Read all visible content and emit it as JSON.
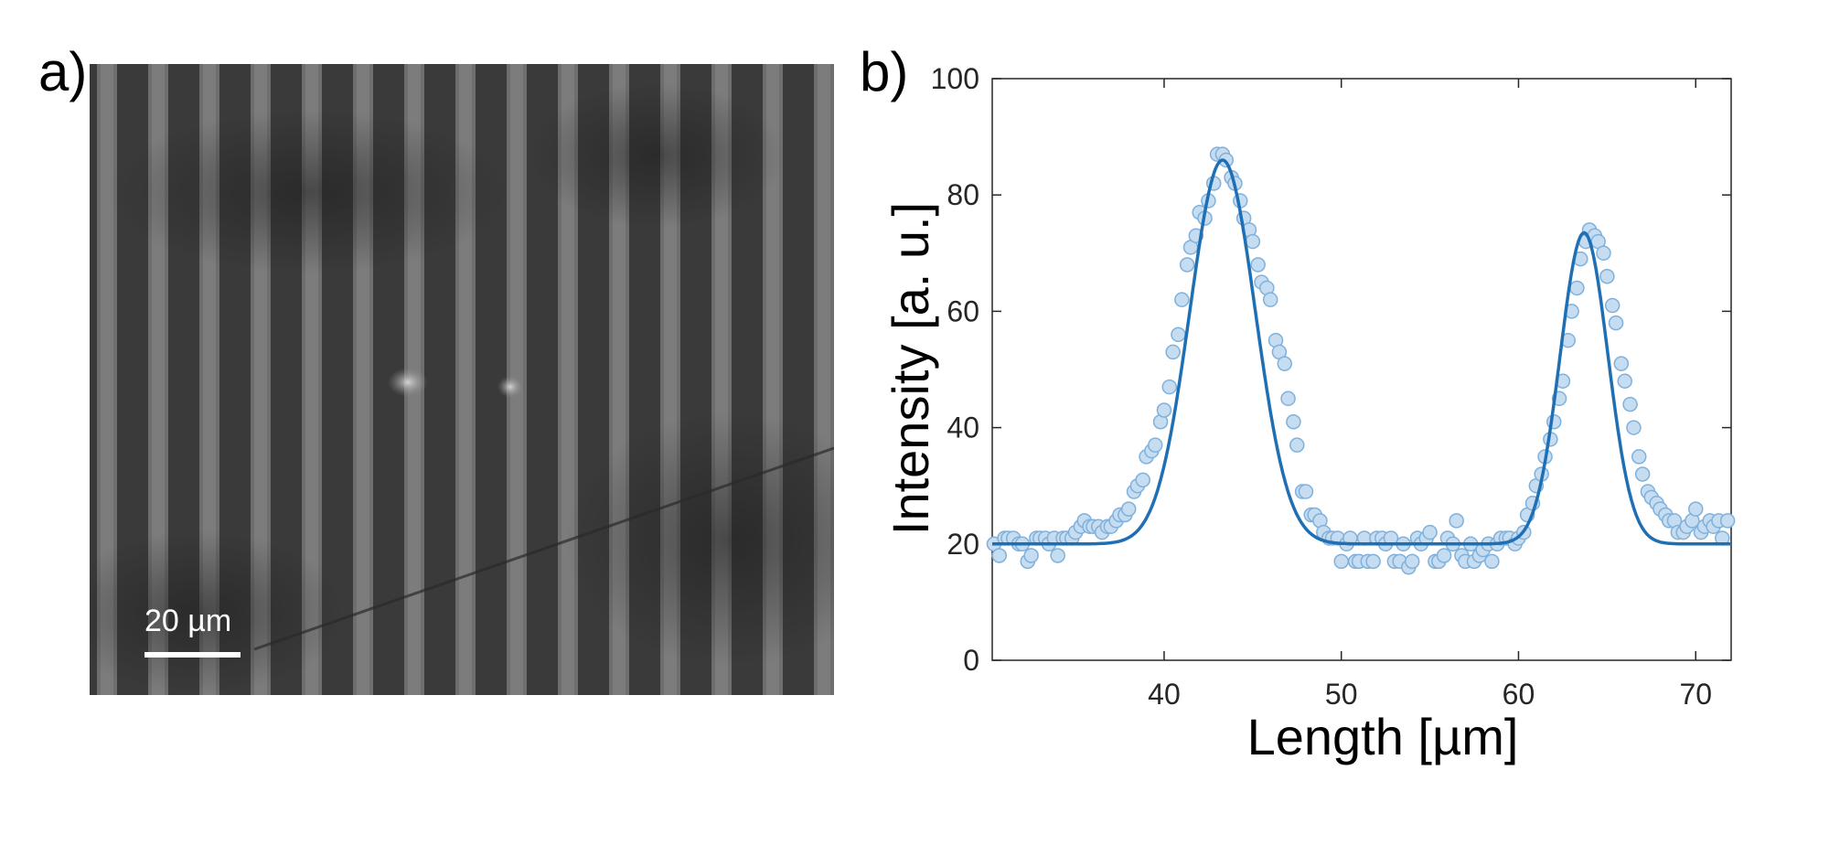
{
  "panel_a": {
    "label": "a)",
    "scale_bar_label": "20 µm"
  },
  "panel_b": {
    "label": "b)"
  },
  "chart_data": {
    "type": "scatter",
    "xlabel": "Length [µm]",
    "ylabel": "Intensity [a. u.]",
    "xlim": [
      30.3,
      72
    ],
    "ylim": [
      0,
      100
    ],
    "xticks": [
      40,
      50,
      60,
      70
    ],
    "yticks": [
      0,
      20,
      40,
      60,
      80,
      100
    ],
    "grid": false,
    "colors": {
      "marker_fill": "#c6dcf0",
      "marker_edge": "#7fb1dc",
      "fit_line": "#1f6fb4",
      "axis": "#262626"
    },
    "series": [
      {
        "kind": "points",
        "x": [
          30.4,
          30.7,
          31.0,
          31.2,
          31.5,
          31.8,
          32.0,
          32.3,
          32.5,
          32.8,
          33.0,
          33.3,
          33.5,
          33.8,
          34.0,
          34.3,
          34.5,
          34.8,
          35.0,
          35.3,
          35.5,
          35.8,
          36.0,
          36.3,
          36.5,
          36.8,
          37.0,
          37.3,
          37.5,
          37.8,
          38.0,
          38.3,
          38.5,
          38.8,
          39.0,
          39.3,
          39.5,
          39.8,
          40.0,
          40.3,
          40.5,
          40.8,
          41.0,
          41.3,
          41.5,
          41.8,
          42.0,
          42.3,
          42.5,
          42.8,
          43.0,
          43.3,
          43.5,
          43.8,
          44.0,
          44.3,
          44.5,
          44.8,
          45.0,
          45.3,
          45.5,
          45.8,
          46.0,
          46.3,
          46.5,
          46.8,
          47.0,
          47.3,
          47.5,
          47.8,
          48.0,
          48.3,
          48.5,
          48.8,
          49.0,
          49.3,
          49.5,
          49.8,
          50.0,
          50.3,
          50.5,
          50.8,
          51.0,
          51.3,
          51.5,
          51.8,
          52.0,
          52.3,
          52.5,
          52.8,
          53.0,
          53.3,
          53.5,
          53.8,
          54.0,
          54.3,
          54.5,
          54.8,
          55.0,
          55.3,
          55.5,
          55.8,
          56.0,
          56.3,
          56.5,
          56.8,
          57.0,
          57.3,
          57.5,
          57.8,
          58.0,
          58.3,
          58.5,
          58.8,
          59.0,
          59.3,
          59.5,
          59.8,
          60.0,
          60.3,
          60.5,
          60.8,
          61.0,
          61.3,
          61.5,
          61.8,
          62.0,
          62.3,
          62.5,
          62.8,
          63.0,
          63.3,
          63.5,
          63.8,
          64.0,
          64.3,
          64.5,
          64.8,
          65.0,
          65.3,
          65.5,
          65.8,
          66.0,
          66.3,
          66.5,
          66.8,
          67.0,
          67.3,
          67.5,
          67.8,
          68.0,
          68.3,
          68.5,
          68.8,
          69.0,
          69.3,
          69.5,
          69.8,
          70.0,
          70.3,
          70.5,
          70.8,
          71.0,
          71.3,
          71.5,
          71.8
        ],
        "y": [
          20,
          18,
          21,
          21,
          21,
          20,
          20,
          17,
          18,
          21,
          21,
          21,
          20,
          21,
          18,
          21,
          21,
          21,
          22,
          23,
          24,
          23,
          23,
          23,
          22,
          23,
          23,
          24,
          25,
          25,
          26,
          29,
          30,
          31,
          35,
          36,
          37,
          41,
          43,
          47,
          53,
          56,
          62,
          68,
          71,
          73,
          77,
          76,
          79,
          82,
          87,
          87,
          86,
          83,
          82,
          79,
          76,
          74,
          72,
          68,
          65,
          64,
          62,
          55,
          53,
          51,
          45,
          41,
          37,
          29,
          29,
          25,
          25,
          24,
          22,
          21,
          21,
          21,
          17,
          20,
          21,
          17,
          17,
          21,
          17,
          17,
          21,
          21,
          20,
          21,
          17,
          17,
          20,
          16,
          17,
          21,
          20,
          21,
          22,
          17,
          17,
          18,
          21,
          20,
          24,
          18,
          17,
          20,
          17,
          18,
          19,
          20,
          17,
          20,
          21,
          21,
          21,
          20,
          21,
          22,
          25,
          27,
          30,
          32,
          35,
          38,
          41,
          45,
          48,
          55,
          60,
          64,
          69,
          72,
          74,
          73,
          72,
          70,
          66,
          61,
          58,
          51,
          48,
          44,
          40,
          35,
          32,
          29,
          28,
          27,
          26,
          25,
          24,
          24,
          22,
          22,
          23,
          24,
          26,
          22,
          23,
          24,
          23,
          24,
          21,
          24
        ]
      },
      {
        "kind": "fit",
        "baseline": 20,
        "peaks": [
          {
            "center": 43.3,
            "amplitude": 66,
            "sigma": 1.85
          },
          {
            "center": 63.7,
            "amplitude": 53.5,
            "sigma": 1.35
          }
        ]
      }
    ]
  }
}
